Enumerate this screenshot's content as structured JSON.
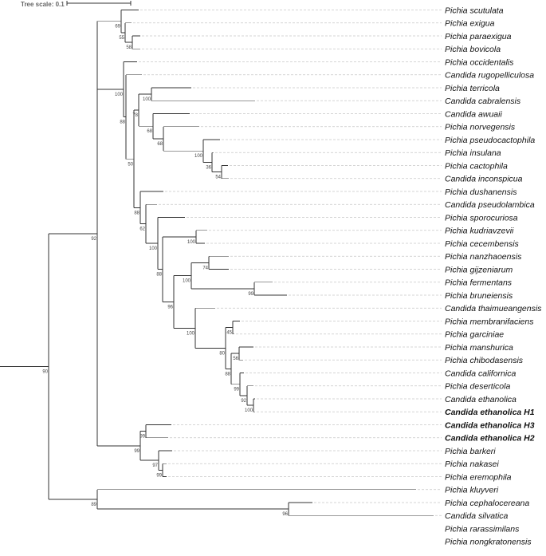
{
  "scale": {
    "label": "Tree scale: 0.1"
  },
  "taxa": [
    {
      "name": "Pichia scutulata",
      "bold": false
    },
    {
      "name": "Pichia exigua",
      "bold": false
    },
    {
      "name": "Pichia paraexigua",
      "bold": false
    },
    {
      "name": "Pichia bovicola",
      "bold": false
    },
    {
      "name": "Pichia occidentalis",
      "bold": false
    },
    {
      "name": "Candida rugopelliculosa",
      "bold": false
    },
    {
      "name": "Pichia terricola",
      "bold": false
    },
    {
      "name": "Candida cabralensis",
      "bold": false
    },
    {
      "name": "Candida awuaii",
      "bold": false
    },
    {
      "name": "Pichia norvegensis",
      "bold": false
    },
    {
      "name": "Pichia pseudocactophila",
      "bold": false
    },
    {
      "name": "Pichia insulana",
      "bold": false
    },
    {
      "name": "Pichia cactophila",
      "bold": false
    },
    {
      "name": "Candida inconspicua",
      "bold": false
    },
    {
      "name": "Pichia dushanensis",
      "bold": false
    },
    {
      "name": "Candida pseudolambica",
      "bold": false
    },
    {
      "name": "Pichia sporocuriosa",
      "bold": false
    },
    {
      "name": "Pichia kudriavzevii",
      "bold": false
    },
    {
      "name": "Pichia cecembensis",
      "bold": false
    },
    {
      "name": "Pichia nanzhaoensis",
      "bold": false
    },
    {
      "name": "Pichia gijzeniarum",
      "bold": false
    },
    {
      "name": "Pichia fermentans",
      "bold": false
    },
    {
      "name": "Pichia bruneiensis",
      "bold": false
    },
    {
      "name": "Candida thaimueangensis",
      "bold": false
    },
    {
      "name": "Pichia membranifaciens",
      "bold": false
    },
    {
      "name": "Pichia garciniae",
      "bold": false
    },
    {
      "name": "Pichia manshurica",
      "bold": false
    },
    {
      "name": "Pichia chibodasensis",
      "bold": false
    },
    {
      "name": "Candida californica",
      "bold": false
    },
    {
      "name": "Pichia deserticola",
      "bold": false
    },
    {
      "name": "Candida ethanolica",
      "bold": false
    },
    {
      "name": "Candida ethanolica H1",
      "bold": true
    },
    {
      "name": "Candida ethanolica H3",
      "bold": true
    },
    {
      "name": "Candida ethanolica H2",
      "bold": true
    },
    {
      "name": "Pichia barkeri",
      "bold": false
    },
    {
      "name": "Pichia nakasei",
      "bold": false
    },
    {
      "name": "Pichia eremophila",
      "bold": false
    },
    {
      "name": "Pichia kluyveri",
      "bold": false
    },
    {
      "name": "Pichia cephalocereana",
      "bold": false
    },
    {
      "name": "Candida silvatica",
      "bold": false
    },
    {
      "name": "Pichia rarassimilans",
      "bold": false
    },
    {
      "name": "Pichia nongkratonensis",
      "bold": false
    }
  ],
  "support_values": [
    "90",
    "92",
    "69",
    "55",
    "58",
    "100",
    "88",
    "50",
    "78",
    "100",
    "68",
    "68",
    "100",
    "36",
    "54",
    "88",
    "62",
    "100",
    "88",
    "100",
    "96",
    "100",
    "74",
    "99",
    "100",
    "80",
    "45",
    "88",
    "56",
    "99",
    "92",
    "100",
    "99",
    "99",
    "97",
    "99",
    "89",
    "96",
    "100"
  ]
}
